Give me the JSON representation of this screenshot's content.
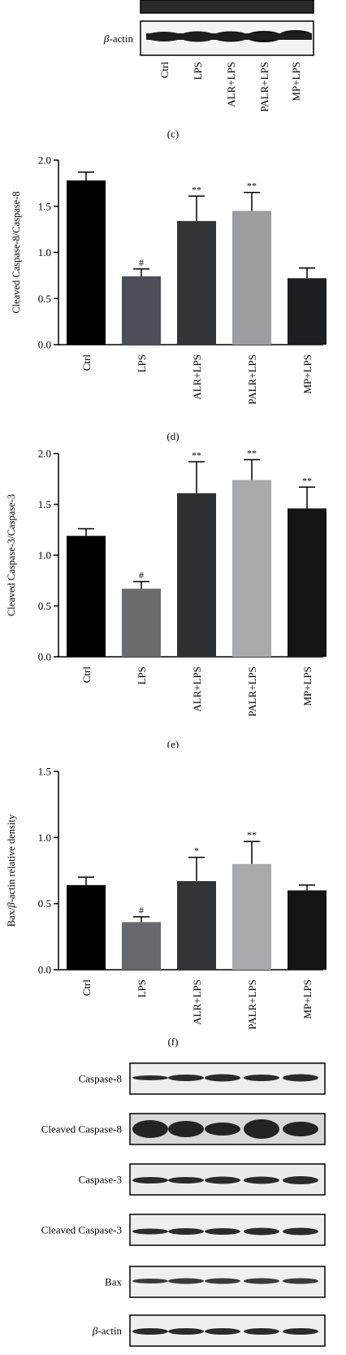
{
  "top_blot": {
    "label_prefix": "β",
    "label_rest": "-actin",
    "lanes": [
      "Ctrl",
      "LPS",
      "ALR+LPS",
      "PALR+LPS",
      "MP+LPS"
    ],
    "panel_label": "(c)"
  },
  "chart_data": [
    {
      "type": "bar",
      "panel_label": "(d)",
      "ylabel": "Cleaved Caspase-8/Caspase-8",
      "categories": [
        "Ctrl",
        "LPS",
        "ALR+LPS",
        "PALR+LPS",
        "MP+LPS"
      ],
      "values": [
        1.78,
        0.74,
        1.34,
        1.45,
        0.72
      ],
      "errors": [
        0.09,
        0.08,
        0.27,
        0.2,
        0.11
      ],
      "significance": [
        "",
        "#",
        "**",
        "**",
        ""
      ],
      "bar_colors": [
        "#000000",
        "#4c4f57",
        "#333437",
        "#9c9da0",
        "#1d1e20"
      ],
      "ylim": [
        0,
        2.0
      ],
      "yticks": [
        "0.0",
        "0.5",
        "1.0",
        "1.5",
        "2.0"
      ]
    },
    {
      "type": "bar",
      "panel_label": "(e)",
      "ylabel": "Cleaved Caspase-3/Caspase-3",
      "categories": [
        "Ctrl",
        "LPS",
        "ALR+LPS",
        "PALR+LPS",
        "MP+LPS"
      ],
      "values": [
        1.19,
        0.67,
        1.61,
        1.74,
        1.46
      ],
      "errors": [
        0.07,
        0.07,
        0.31,
        0.2,
        0.21
      ],
      "significance": [
        "",
        "#",
        "**",
        "**",
        "**"
      ],
      "bar_colors": [
        "#000000",
        "#6a6c70",
        "#2e2f32",
        "#a9aaac",
        "#141414"
      ],
      "ylim": [
        0,
        2.0
      ],
      "yticks": [
        "0.0",
        "0.5",
        "1.0",
        "1.5",
        "2.0"
      ]
    },
    {
      "type": "bar",
      "panel_label": "(f)",
      "ylabel_prefix": "Bax/",
      "ylabel_italic": "β",
      "ylabel_rest": "-actin relative density",
      "categories": [
        "Ctrl",
        "LPS",
        "ALR+LPS",
        "PALR+LPS",
        "MP+LPS"
      ],
      "values": [
        0.64,
        0.36,
        0.67,
        0.8,
        0.6
      ],
      "errors": [
        0.06,
        0.04,
        0.18,
        0.17,
        0.04
      ],
      "significance": [
        "",
        "#",
        "*",
        "**",
        ""
      ],
      "bar_colors": [
        "#000000",
        "#66686d",
        "#333437",
        "#a9aaac",
        "#141414"
      ],
      "ylim": [
        0,
        1.5
      ],
      "yticks": [
        "0.0",
        "0.5",
        "1.0",
        "1.5"
      ]
    }
  ],
  "bottom_blots": [
    {
      "label": "Caspase-8"
    },
    {
      "label": "Cleaved Caspase-8"
    },
    {
      "label": "Caspase-3"
    },
    {
      "label": "Cleaved Caspase-3"
    },
    {
      "label": "Bax"
    },
    {
      "label_prefix": "β",
      "label_rest": "-actin"
    }
  ]
}
